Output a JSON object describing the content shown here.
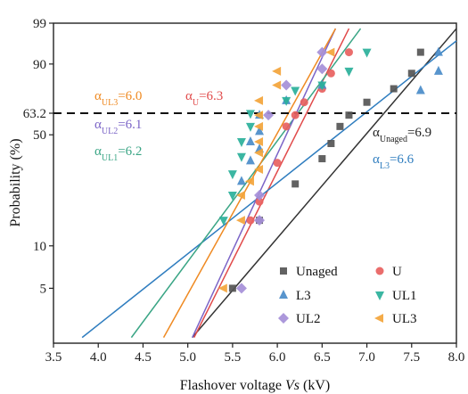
{
  "chart_data": {
    "type": "scatter",
    "title": "",
    "xlabel": {
      "main": "Flashover voltage ",
      "italic": "Vs",
      "unit": " (kV)"
    },
    "ylabel": "Probability (%)",
    "xlim": [
      3.5,
      8.0
    ],
    "ylim_percent": [
      2,
      99
    ],
    "y_scale": "weibull-probability",
    "x_ticks": [
      "3.5",
      "4.0",
      "4.5",
      "5.0",
      "5.5",
      "6.0",
      "6.5",
      "7.0",
      "7.5",
      "8.0"
    ],
    "y_ticks": [
      5,
      10,
      50,
      63.2,
      90,
      99
    ],
    "y_tick_labels": [
      "5",
      "10",
      "50",
      "63.2",
      "90",
      "99"
    ],
    "reference_line": {
      "y": 63.2,
      "style": "dashed"
    },
    "grid": false,
    "legend_position": "bottom-right",
    "series": [
      {
        "name": "Unaged",
        "marker": "square",
        "color": "#555555",
        "line_color": "#333333",
        "fit_line": [
          [
            5.05,
            2.2
          ],
          [
            8.0,
            98.5
          ]
        ],
        "points": [
          [
            5.5,
            5
          ],
          [
            5.8,
            15
          ],
          [
            6.2,
            26
          ],
          [
            6.5,
            37
          ],
          [
            6.6,
            45
          ],
          [
            6.7,
            55
          ],
          [
            6.8,
            62
          ],
          [
            7.0,
            70
          ],
          [
            7.3,
            78
          ],
          [
            7.5,
            86
          ],
          [
            7.6,
            94
          ]
        ]
      },
      {
        "name": "U",
        "marker": "circle",
        "color": "#e8615f",
        "line_color": "#e14a4a",
        "fit_line": [
          [
            5.07,
            2.2
          ],
          [
            6.8,
            98.5
          ]
        ],
        "points": [
          [
            5.7,
            15
          ],
          [
            5.8,
            20
          ],
          [
            6.0,
            35
          ],
          [
            6.1,
            55
          ],
          [
            6.2,
            62
          ],
          [
            6.3,
            70
          ],
          [
            6.5,
            78
          ],
          [
            6.6,
            86
          ],
          [
            6.8,
            94
          ]
        ]
      },
      {
        "name": "L3",
        "marker": "triangle-up",
        "color": "#4a8cc9",
        "line_color": "#2f7dbf",
        "fit_line": [
          [
            3.82,
            2.2
          ],
          [
            8.0,
            96.7
          ]
        ],
        "points": [
          [
            5.6,
            27
          ],
          [
            5.7,
            36
          ],
          [
            5.8,
            42
          ],
          [
            5.7,
            46
          ],
          [
            5.8,
            52
          ],
          [
            5.8,
            62
          ],
          [
            6.1,
            71
          ],
          [
            6.5,
            80
          ],
          [
            7.6,
            77
          ],
          [
            7.8,
            87
          ],
          [
            7.8,
            94
          ]
        ]
      },
      {
        "name": "UL1",
        "marker": "triangle-down",
        "color": "#2ab09a",
        "line_color": "#3aa585",
        "fit_line": [
          [
            4.37,
            2.2
          ],
          [
            6.93,
            98.5
          ]
        ],
        "points": [
          [
            5.4,
            15
          ],
          [
            5.5,
            22
          ],
          [
            5.5,
            30
          ],
          [
            5.6,
            38
          ],
          [
            5.6,
            46
          ],
          [
            5.7,
            55
          ],
          [
            5.7,
            63
          ],
          [
            6.1,
            71
          ],
          [
            6.2,
            77
          ],
          [
            6.5,
            80
          ],
          [
            6.8,
            87
          ],
          [
            7.0,
            94
          ]
        ]
      },
      {
        "name": "UL2",
        "marker": "diamond",
        "color": "#a58fd8",
        "line_color": "#7b64c7",
        "fit_line": [
          [
            5.05,
            2.2
          ],
          [
            6.65,
            98.5
          ]
        ],
        "points": [
          [
            5.6,
            5
          ],
          [
            5.8,
            15
          ],
          [
            5.8,
            22
          ],
          [
            5.9,
            62
          ],
          [
            6.1,
            80
          ],
          [
            6.5,
            88
          ],
          [
            6.5,
            94
          ]
        ]
      },
      {
        "name": "UL3",
        "marker": "triangle-left",
        "color": "#f3a43a",
        "line_color": "#ef8a22",
        "fit_line": [
          [
            4.73,
            2.2
          ],
          [
            6.65,
            98.5
          ]
        ],
        "points": [
          [
            5.4,
            5
          ],
          [
            5.6,
            15
          ],
          [
            5.6,
            22
          ],
          [
            5.7,
            27
          ],
          [
            5.8,
            32
          ],
          [
            5.8,
            40
          ],
          [
            5.8,
            46
          ],
          [
            5.8,
            55
          ],
          [
            5.8,
            62
          ],
          [
            5.8,
            71
          ],
          [
            6.0,
            80
          ],
          [
            6.0,
            87
          ],
          [
            6.6,
            94
          ]
        ]
      }
    ],
    "annotations": [
      {
        "sub": "UL3",
        "value": "=6.0",
        "color": "#ef8a22"
      },
      {
        "sub": "U",
        "value": "=6.3",
        "color": "#e14a4a"
      },
      {
        "sub": "UL2",
        "value": "=6.1",
        "color": "#7b64c7"
      },
      {
        "sub": "UL1",
        "value": "=6.2",
        "color": "#3aa585"
      },
      {
        "sub": "Unaged",
        "value": "=6.9",
        "color": "#222222"
      },
      {
        "sub": "L3",
        "value": "=6.6",
        "color": "#2f7dbf"
      }
    ],
    "alpha_symbol": "α"
  }
}
